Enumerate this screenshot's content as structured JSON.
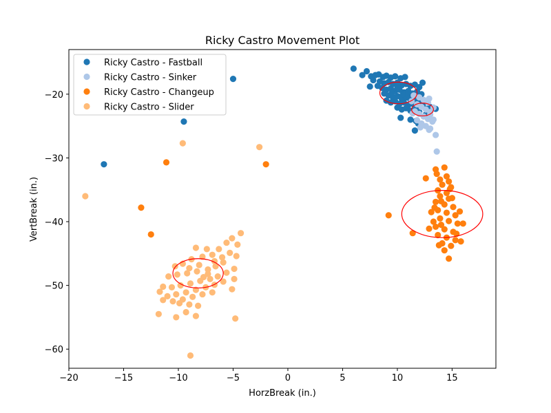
{
  "chart_data": {
    "type": "scatter",
    "title": "Ricky Castro Movement Plot",
    "xlabel": "HorzBreak (in.)",
    "ylabel": "VertBreak (in.)",
    "xlim": [
      -20,
      19
    ],
    "ylim": [
      -63,
      -13
    ],
    "xticks": [
      -20,
      -15,
      -10,
      -5,
      0,
      5,
      10,
      15
    ],
    "yticks": [
      -60,
      -50,
      -40,
      -30,
      -20
    ],
    "grid": false,
    "legend_position": "top-left",
    "series": [
      {
        "name": "Ricky Castro - Fastball",
        "color": "#1f77b4",
        "points": [
          [
            6.0,
            -16.0
          ],
          [
            7.2,
            -16.4
          ],
          [
            6.8,
            -17.0
          ],
          [
            7.6,
            -17.2
          ],
          [
            8.0,
            -17.0
          ],
          [
            8.3,
            -16.9
          ],
          [
            8.7,
            -17.3
          ],
          [
            9.0,
            -17.1
          ],
          [
            9.4,
            -17.4
          ],
          [
            9.8,
            -17.2
          ],
          [
            10.3,
            -17.5
          ],
          [
            10.7,
            -17.3
          ],
          [
            7.8,
            -17.8
          ],
          [
            8.4,
            -18.0
          ],
          [
            8.8,
            -18.3
          ],
          [
            9.2,
            -18.1
          ],
          [
            9.6,
            -18.4
          ],
          [
            10.0,
            -18.2
          ],
          [
            10.4,
            -18.6
          ],
          [
            10.8,
            -18.4
          ],
          [
            11.2,
            -18.7
          ],
          [
            11.6,
            -18.5
          ],
          [
            12.0,
            -18.9
          ],
          [
            8.2,
            -18.7
          ],
          [
            8.6,
            -19.0
          ],
          [
            9.0,
            -19.3
          ],
          [
            9.4,
            -19.1
          ],
          [
            9.8,
            -19.5
          ],
          [
            10.2,
            -19.3
          ],
          [
            10.6,
            -19.7
          ],
          [
            11.0,
            -19.5
          ],
          [
            11.4,
            -19.9
          ],
          [
            11.8,
            -19.6
          ],
          [
            12.2,
            -20.0
          ],
          [
            8.8,
            -19.9
          ],
          [
            9.2,
            -20.2
          ],
          [
            9.6,
            -20.5
          ],
          [
            10.0,
            -20.3
          ],
          [
            10.4,
            -20.7
          ],
          [
            10.8,
            -20.5
          ],
          [
            11.2,
            -20.9
          ],
          [
            11.6,
            -20.7
          ],
          [
            12.0,
            -21.0
          ],
          [
            9.0,
            -21.0
          ],
          [
            9.4,
            -21.3
          ],
          [
            9.8,
            -21.1
          ],
          [
            10.2,
            -21.5
          ],
          [
            10.6,
            -21.3
          ],
          [
            11.0,
            -21.7
          ],
          [
            11.4,
            -21.5
          ],
          [
            11.8,
            -21.9
          ],
          [
            12.4,
            -21.4
          ],
          [
            10.0,
            -22.1
          ],
          [
            10.4,
            -22.4
          ],
          [
            10.8,
            -22.2
          ],
          [
            11.2,
            -22.6
          ],
          [
            11.6,
            -22.4
          ],
          [
            12.0,
            -22.8
          ],
          [
            10.5,
            -20.0
          ],
          [
            9.5,
            -19.8
          ],
          [
            11.0,
            -20.1
          ],
          [
            10.0,
            -19.0
          ],
          [
            11.5,
            -21.0
          ],
          [
            12.2,
            -21.8
          ],
          [
            12.6,
            -22.3
          ],
          [
            13.0,
            -22.0
          ],
          [
            13.5,
            -22.3
          ],
          [
            11.7,
            -24.2
          ],
          [
            11.9,
            -24.6
          ],
          [
            11.2,
            -24.0
          ],
          [
            11.6,
            -25.7
          ],
          [
            12.6,
            -23.2
          ],
          [
            10.3,
            -23.7
          ],
          [
            12.3,
            -18.2
          ],
          [
            7.5,
            -18.8
          ],
          [
            -5.0,
            -17.6
          ],
          [
            -9.5,
            -24.3
          ],
          [
            -16.8,
            -31.0
          ]
        ]
      },
      {
        "name": "Ricky Castro - Sinker",
        "color": "#aec7e8",
        "points": [
          [
            11.5,
            -20.2
          ],
          [
            12.0,
            -20.5
          ],
          [
            12.4,
            -20.9
          ],
          [
            12.8,
            -21.3
          ],
          [
            11.8,
            -21.6
          ],
          [
            12.2,
            -22.0
          ],
          [
            12.6,
            -22.4
          ],
          [
            13.0,
            -22.8
          ],
          [
            11.6,
            -22.7
          ],
          [
            12.0,
            -23.1
          ],
          [
            12.4,
            -23.5
          ],
          [
            12.8,
            -23.9
          ],
          [
            13.2,
            -24.3
          ],
          [
            12.2,
            -24.6
          ],
          [
            12.6,
            -25.0
          ],
          [
            13.0,
            -25.4
          ],
          [
            13.0,
            -23.2
          ],
          [
            13.3,
            -24.0
          ],
          [
            11.8,
            -24.1
          ],
          [
            12.1,
            -25.2
          ],
          [
            12.9,
            -25.6
          ],
          [
            13.5,
            -26.4
          ],
          [
            13.6,
            -29.0
          ],
          [
            11.3,
            -21.1
          ],
          [
            12.9,
            -20.7
          ],
          [
            13.3,
            -22.1
          ],
          [
            11.4,
            -23.0
          ]
        ]
      },
      {
        "name": "Ricky Castro - Changeup",
        "color": "#ff7f0e",
        "points": [
          [
            13.5,
            -31.8
          ],
          [
            14.3,
            -31.5
          ],
          [
            13.6,
            -32.5
          ],
          [
            14.5,
            -32.9
          ],
          [
            13.9,
            -33.4
          ],
          [
            14.7,
            -33.7
          ],
          [
            14.1,
            -34.2
          ],
          [
            14.9,
            -34.6
          ],
          [
            13.7,
            -35.1
          ],
          [
            14.5,
            -35.5
          ],
          [
            13.9,
            -36.0
          ],
          [
            14.7,
            -36.4
          ],
          [
            13.5,
            -36.9
          ],
          [
            14.3,
            -37.3
          ],
          [
            15.1,
            -37.7
          ],
          [
            13.7,
            -38.2
          ],
          [
            14.5,
            -38.6
          ],
          [
            15.3,
            -39.0
          ],
          [
            13.9,
            -39.5
          ],
          [
            14.7,
            -39.9
          ],
          [
            15.5,
            -40.3
          ],
          [
            13.5,
            -40.8
          ],
          [
            14.3,
            -41.2
          ],
          [
            15.1,
            -41.6
          ],
          [
            13.7,
            -42.1
          ],
          [
            14.5,
            -42.5
          ],
          [
            15.3,
            -42.9
          ],
          [
            14.1,
            -43.4
          ],
          [
            14.9,
            -43.8
          ],
          [
            14.3,
            -44.5
          ],
          [
            14.7,
            -45.8
          ],
          [
            15.8,
            -43.1
          ],
          [
            16.0,
            -40.3
          ],
          [
            15.7,
            -38.4
          ],
          [
            13.3,
            -40.0
          ],
          [
            13.1,
            -38.5
          ],
          [
            14.0,
            -36.8
          ],
          [
            15.0,
            -36.3
          ],
          [
            13.8,
            -43.7
          ],
          [
            12.9,
            -41.1
          ],
          [
            12.6,
            -33.2
          ],
          [
            14.8,
            -34.9
          ],
          [
            13.4,
            -37.8
          ],
          [
            14.0,
            -40.5
          ],
          [
            15.4,
            -41.9
          ],
          [
            9.2,
            -39.0
          ],
          [
            11.4,
            -41.8
          ],
          [
            -2.0,
            -31.0
          ],
          [
            -11.1,
            -30.7
          ],
          [
            -13.4,
            -37.8
          ],
          [
            -12.5,
            -42.0
          ]
        ]
      },
      {
        "name": "Ricky Castro - Slider",
        "color": "#ffbb78",
        "points": [
          [
            -18.5,
            -36.0
          ],
          [
            -9.6,
            -27.7
          ],
          [
            -2.6,
            -28.3
          ],
          [
            -8.9,
            -61.0
          ],
          [
            -4.3,
            -41.8
          ],
          [
            -5.1,
            -42.6
          ],
          [
            -5.6,
            -43.3
          ],
          [
            -6.3,
            -44.3
          ],
          [
            -7.4,
            -44.3
          ],
          [
            -8.4,
            -44.1
          ],
          [
            -4.6,
            -43.6
          ],
          [
            -6.9,
            -45.2
          ],
          [
            -7.8,
            -45.5
          ],
          [
            -8.8,
            -45.9
          ],
          [
            -9.6,
            -46.6
          ],
          [
            -10.3,
            -47.0
          ],
          [
            -5.9,
            -46.4
          ],
          [
            -6.6,
            -47.0
          ],
          [
            -7.3,
            -47.5
          ],
          [
            -8.3,
            -47.8
          ],
          [
            -9.2,
            -48.1
          ],
          [
            -10.1,
            -48.3
          ],
          [
            -10.9,
            -48.6
          ],
          [
            -4.9,
            -47.4
          ],
          [
            -5.6,
            -48.0
          ],
          [
            -6.4,
            -48.6
          ],
          [
            -7.1,
            -49.0
          ],
          [
            -8.0,
            -49.3
          ],
          [
            -8.9,
            -49.7
          ],
          [
            -9.8,
            -50.0
          ],
          [
            -10.6,
            -50.3
          ],
          [
            -11.4,
            -50.2
          ],
          [
            -5.9,
            -49.4
          ],
          [
            -6.7,
            -49.9
          ],
          [
            -7.5,
            -50.3
          ],
          [
            -8.4,
            -50.7
          ],
          [
            -9.3,
            -51.1
          ],
          [
            -10.2,
            -51.4
          ],
          [
            -11.0,
            -51.7
          ],
          [
            -11.7,
            -51.0
          ],
          [
            -4.9,
            -49.0
          ],
          [
            -6.9,
            -51.1
          ],
          [
            -7.8,
            -51.4
          ],
          [
            -8.7,
            -51.8
          ],
          [
            -9.6,
            -52.2
          ],
          [
            -10.5,
            -52.5
          ],
          [
            -11.4,
            -52.3
          ],
          [
            -8.2,
            -53.2
          ],
          [
            -9.0,
            -53.0
          ],
          [
            -9.3,
            -54.2
          ],
          [
            -10.2,
            -55.0
          ],
          [
            -8.4,
            -54.8
          ],
          [
            -11.8,
            -54.5
          ],
          [
            -4.8,
            -55.2
          ],
          [
            -9.9,
            -52.8
          ],
          [
            -7.3,
            -48.2
          ],
          [
            -8.1,
            -46.8
          ],
          [
            -6.0,
            -45.6
          ],
          [
            -5.3,
            -44.9
          ],
          [
            -9.0,
            -47.3
          ],
          [
            -6.7,
            -46.2
          ],
          [
            -7.7,
            -48.7
          ],
          [
            -4.7,
            -45.4
          ],
          [
            -5.1,
            -50.6
          ]
        ]
      }
    ],
    "ellipses": [
      {
        "cx": 10.1,
        "cy": -19.8,
        "rx": 1.7,
        "ry": 1.7,
        "color": "#ff0000"
      },
      {
        "cx": 12.3,
        "cy": -22.4,
        "rx": 1.0,
        "ry": 1.0,
        "color": "#ff0000"
      },
      {
        "cx": 14.1,
        "cy": -38.8,
        "rx": 3.7,
        "ry": 3.7,
        "color": "#ff0000"
      },
      {
        "cx": -8.2,
        "cy": -48.1,
        "rx": 2.3,
        "ry": 2.3,
        "color": "#ff0000"
      }
    ]
  }
}
